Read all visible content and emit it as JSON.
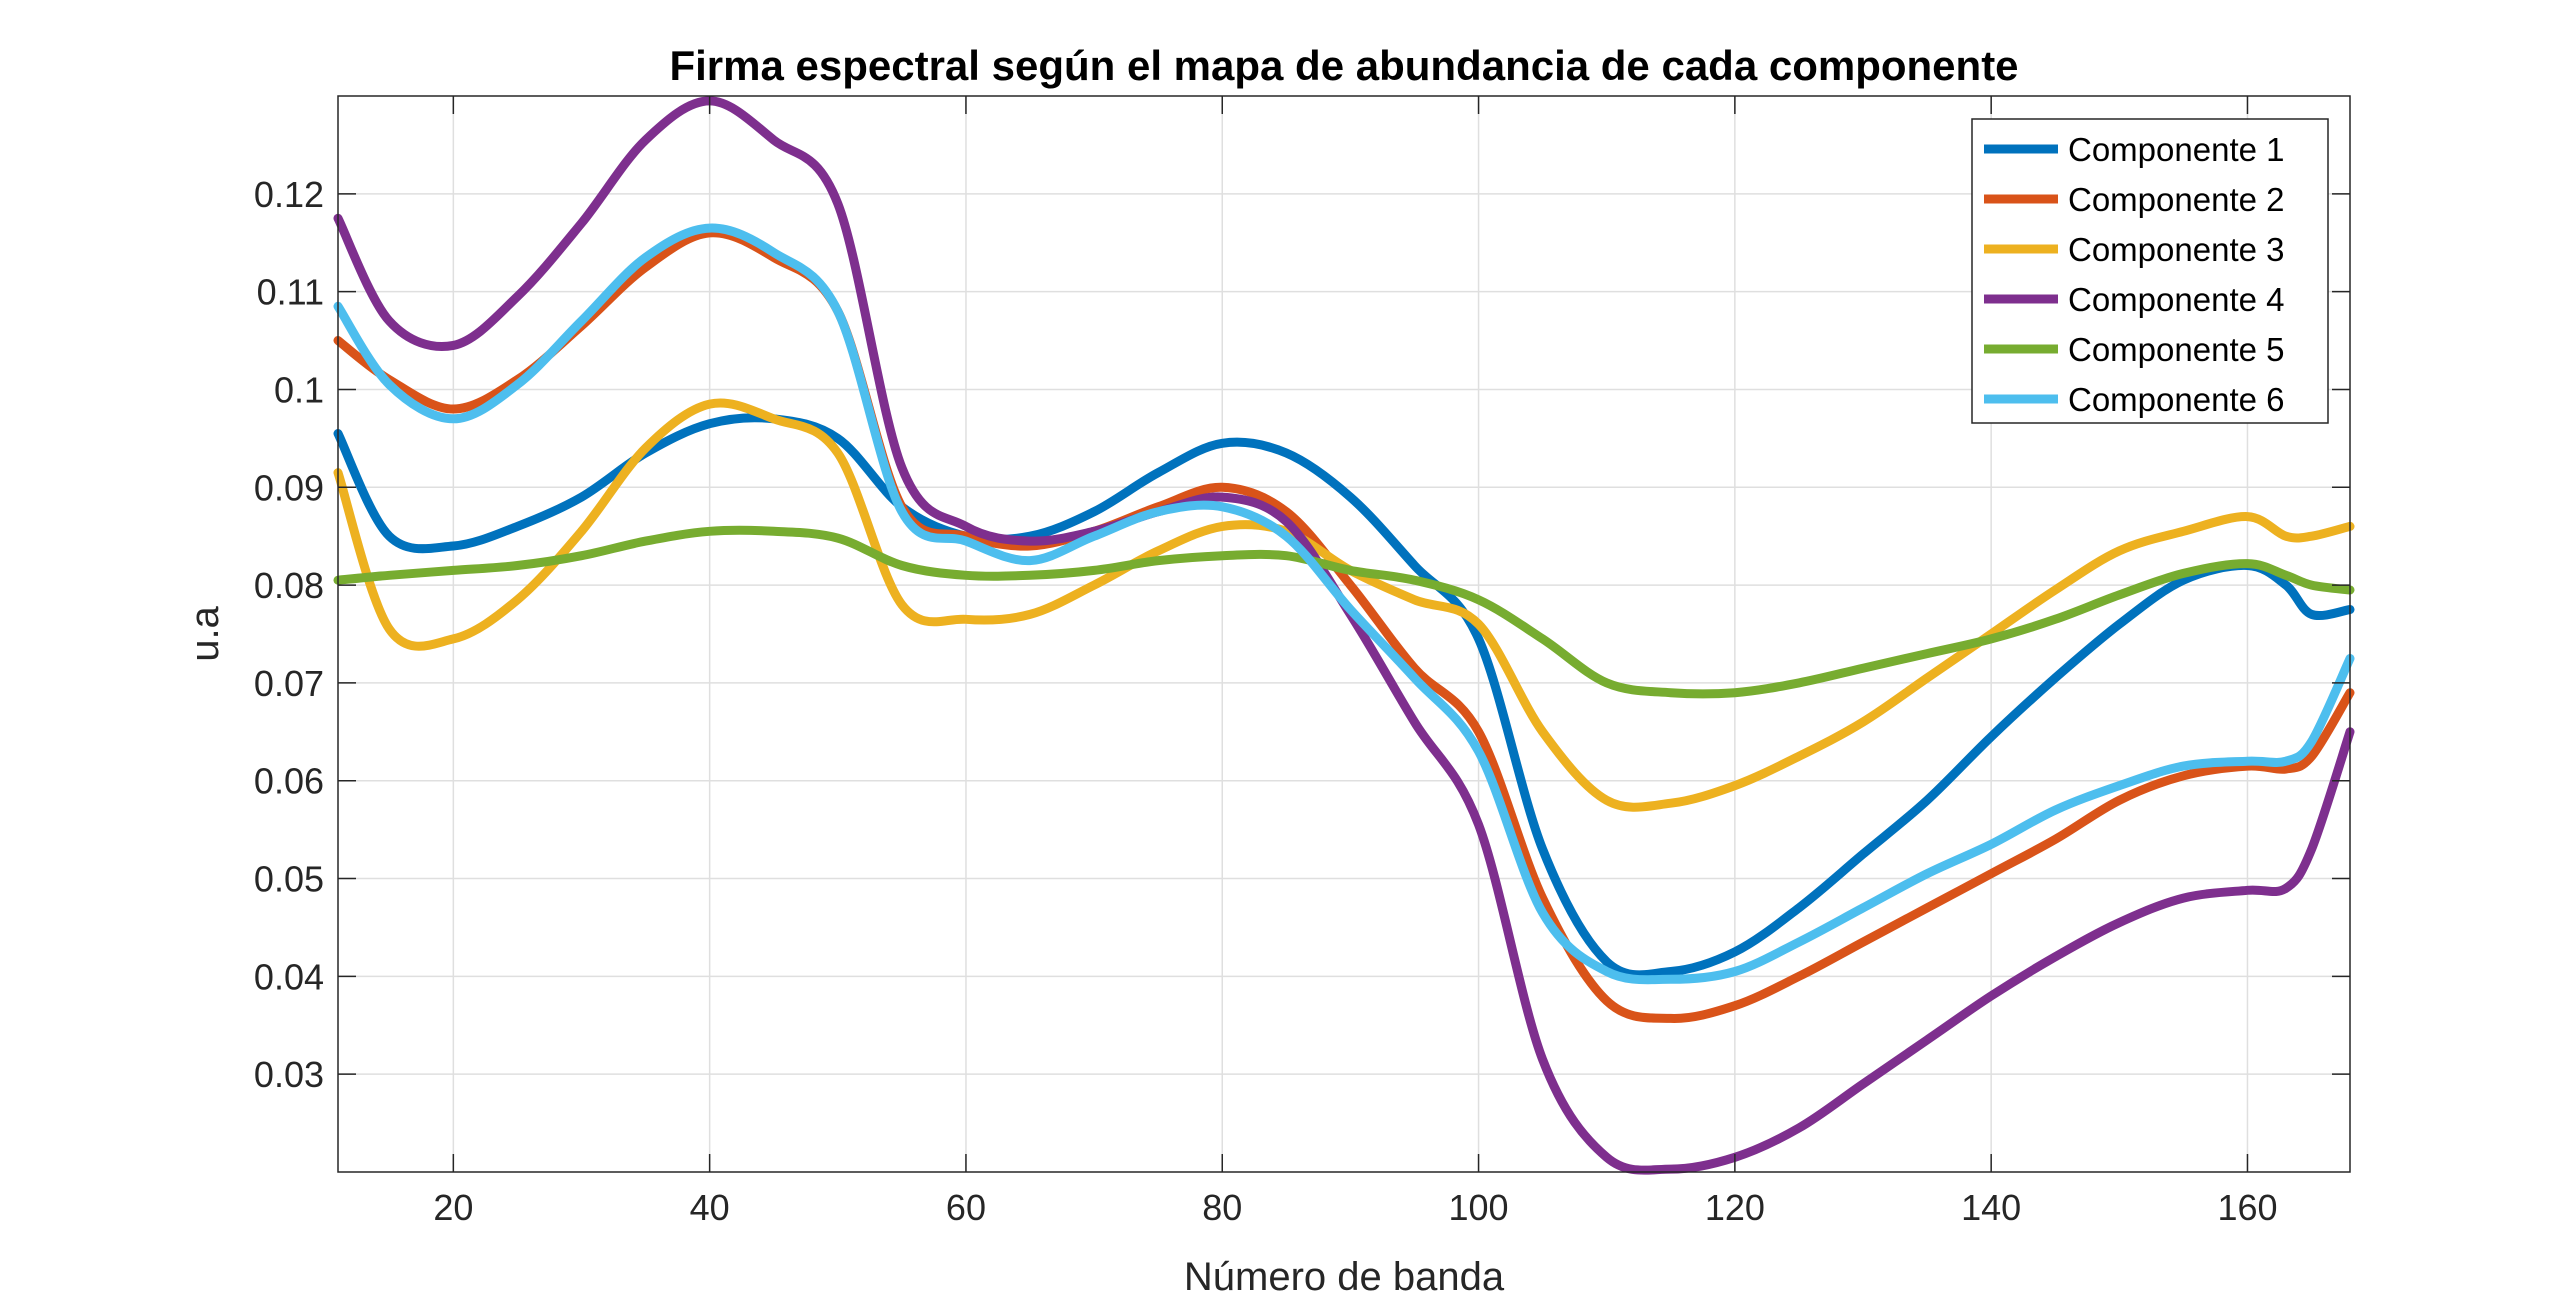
{
  "chart_data": {
    "type": "line",
    "title": "Firma espectral según el mapa de abundancia de cada componente",
    "xlabel": "Número de banda",
    "ylabel": "u.a",
    "xlim": [
      11,
      168
    ],
    "ylim": [
      0.02,
      0.13
    ],
    "xticks": [
      20,
      40,
      60,
      80,
      100,
      120,
      140,
      160
    ],
    "xtick_labels": [
      "20",
      "40",
      "60",
      "80",
      "100",
      "120",
      "140",
      "160"
    ],
    "yticks": [
      0.03,
      0.04,
      0.05,
      0.06,
      0.07,
      0.08,
      0.09,
      0.1,
      0.11,
      0.12
    ],
    "ytick_labels": [
      "0.03",
      "0.04",
      "0.05",
      "0.06",
      "0.07",
      "0.08",
      "0.09",
      "0.1",
      "0.11",
      "0.12"
    ],
    "grid": true,
    "legend_position": "top-right",
    "x": [
      11,
      15,
      20,
      25,
      30,
      35,
      40,
      45,
      50,
      55,
      60,
      65,
      70,
      75,
      80,
      85,
      90,
      95,
      100,
      105,
      110,
      115,
      120,
      125,
      130,
      135,
      140,
      145,
      150,
      155,
      160,
      163,
      165,
      168
    ],
    "series": [
      {
        "name": "Componente 1",
        "color": "#0072BD",
        "values": [
          0.0955,
          0.085,
          0.084,
          0.086,
          0.089,
          0.0935,
          0.0965,
          0.097,
          0.095,
          0.088,
          0.085,
          0.085,
          0.0875,
          0.0915,
          0.0945,
          0.0935,
          0.089,
          0.082,
          0.0745,
          0.053,
          0.0415,
          0.0405,
          0.0425,
          0.047,
          0.0525,
          0.058,
          0.0645,
          0.0705,
          0.076,
          0.0805,
          0.082,
          0.08,
          0.077,
          0.0775
        ]
      },
      {
        "name": "Componente 2",
        "color": "#D95319",
        "values": [
          0.105,
          0.101,
          0.098,
          0.101,
          0.1065,
          0.1125,
          0.116,
          0.1135,
          0.108,
          0.088,
          0.085,
          0.084,
          0.0855,
          0.088,
          0.09,
          0.0875,
          0.08,
          0.0715,
          0.065,
          0.048,
          0.0375,
          0.0357,
          0.037,
          0.04,
          0.0435,
          0.047,
          0.0505,
          0.054,
          0.058,
          0.0605,
          0.0615,
          0.0612,
          0.0625,
          0.069
        ]
      },
      {
        "name": "Componente 3",
        "color": "#EDB120",
        "values": [
          0.0915,
          0.0755,
          0.0745,
          0.0785,
          0.0855,
          0.094,
          0.0985,
          0.097,
          0.0935,
          0.078,
          0.0765,
          0.077,
          0.08,
          0.0835,
          0.086,
          0.0855,
          0.0815,
          0.0785,
          0.076,
          0.065,
          0.058,
          0.0577,
          0.0595,
          0.0625,
          0.066,
          0.0705,
          0.075,
          0.0795,
          0.0835,
          0.0855,
          0.087,
          0.085,
          0.085,
          0.086
        ]
      },
      {
        "name": "Componente 4",
        "color": "#7E2F8E",
        "values": [
          0.1175,
          0.107,
          0.1045,
          0.1095,
          0.117,
          0.1255,
          0.1295,
          0.1255,
          0.119,
          0.092,
          0.086,
          0.0845,
          0.0855,
          0.0875,
          0.089,
          0.0865,
          0.077,
          0.066,
          0.0555,
          0.0315,
          0.0215,
          0.0203,
          0.0215,
          0.0245,
          0.029,
          0.0335,
          0.038,
          0.042,
          0.0455,
          0.048,
          0.0488,
          0.049,
          0.053,
          0.065
        ]
      },
      {
        "name": "Componente 5",
        "color": "#77AC30",
        "values": [
          0.0805,
          0.081,
          0.0815,
          0.082,
          0.083,
          0.0845,
          0.0855,
          0.0855,
          0.0848,
          0.082,
          0.081,
          0.081,
          0.0815,
          0.0825,
          0.083,
          0.083,
          0.0815,
          0.0805,
          0.0785,
          0.0745,
          0.07,
          0.069,
          0.069,
          0.07,
          0.0715,
          0.073,
          0.0745,
          0.0765,
          0.079,
          0.0812,
          0.0822,
          0.081,
          0.08,
          0.0795
        ]
      },
      {
        "name": "Componente 6",
        "color": "#4DBEEE",
        "values": [
          0.1085,
          0.1005,
          0.097,
          0.1005,
          0.107,
          0.1135,
          0.1165,
          0.114,
          0.108,
          0.0875,
          0.0845,
          0.0825,
          0.085,
          0.0875,
          0.088,
          0.085,
          0.0775,
          0.0705,
          0.063,
          0.0465,
          0.0405,
          0.0397,
          0.0405,
          0.0435,
          0.047,
          0.0505,
          0.0535,
          0.057,
          0.0595,
          0.0615,
          0.062,
          0.062,
          0.064,
          0.0725
        ]
      }
    ]
  }
}
